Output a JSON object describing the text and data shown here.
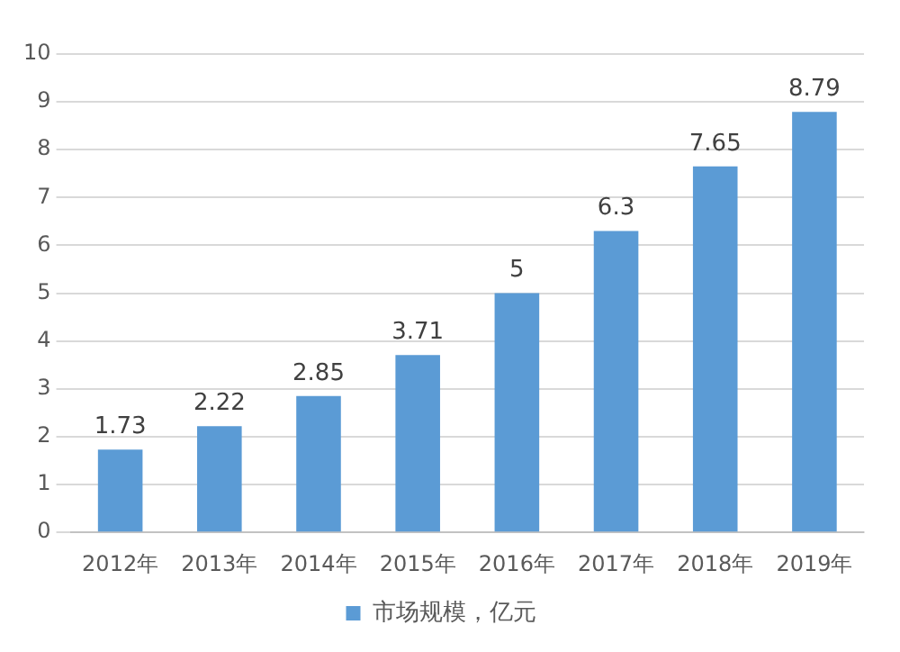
{
  "chart_data": {
    "type": "bar",
    "categories": [
      "2012年",
      "2013年",
      "2014年",
      "2015年",
      "2016年",
      "2017年",
      "2018年",
      "2019年"
    ],
    "series": [
      {
        "name": "市场规模，亿元",
        "color": "#5b9bd5",
        "values": [
          1.73,
          2.22,
          2.85,
          3.71,
          5,
          6.3,
          7.65,
          8.79
        ]
      }
    ],
    "ylim": [
      0,
      10
    ],
    "yticks": [
      0,
      1,
      2,
      3,
      4,
      5,
      6,
      7,
      8,
      9,
      10
    ],
    "grid": "y",
    "legend": "bottom",
    "data_labels": true
  }
}
